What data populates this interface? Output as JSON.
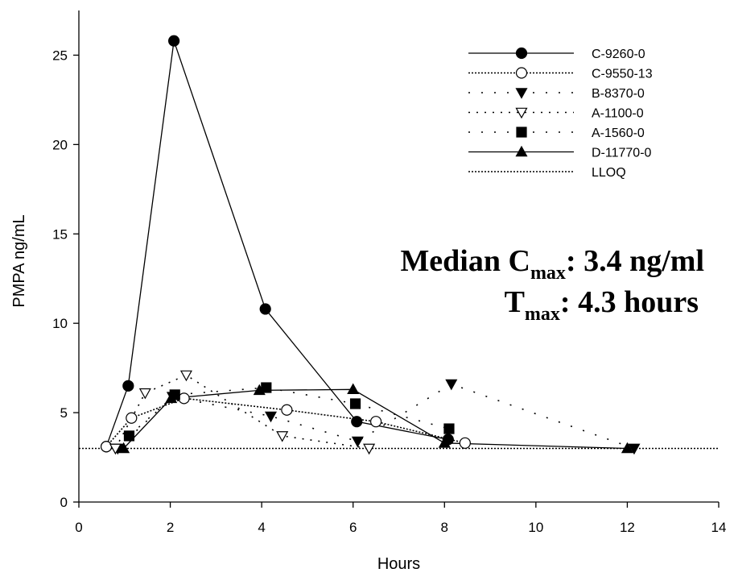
{
  "chart_data": {
    "type": "line",
    "xlabel": "Hours",
    "ylabel": "PMPA ng/mL",
    "xlim": [
      0,
      14
    ],
    "ylim": [
      0,
      27.5
    ],
    "xticks": [
      0,
      2,
      4,
      6,
      8,
      10,
      12,
      14
    ],
    "yticks": [
      0,
      5,
      10,
      15,
      20,
      25
    ],
    "grid": false,
    "legend_position": "top-right",
    "series": [
      {
        "name": "C-9260-0",
        "line": "solid",
        "marker": "circle-filled",
        "x": [
          0.6,
          1.08,
          2.08,
          4.08,
          6.08,
          8.08
        ],
        "y": [
          3.1,
          6.5,
          25.8,
          10.8,
          4.5,
          3.5
        ]
      },
      {
        "name": "C-9550-13",
        "line": "dotted",
        "marker": "circle-open",
        "x": [
          0.6,
          1.15,
          2.3,
          4.55,
          6.5,
          8.45
        ],
        "y": [
          3.1,
          4.7,
          5.8,
          5.15,
          4.5,
          3.3
        ]
      },
      {
        "name": "B-8370-0",
        "line": "sparse-dot",
        "marker": "triangle-down-filled",
        "x": [
          0.85,
          2.05,
          4.2,
          6.1,
          8.15,
          12.15
        ],
        "y": [
          3.0,
          5.9,
          4.8,
          3.4,
          6.6,
          3.0
        ]
      },
      {
        "name": "A-1100-0",
        "line": "dot-gap",
        "marker": "triangle-down-open",
        "x": [
          0.8,
          1.45,
          2.35,
          4.45,
          6.35
        ],
        "y": [
          3.0,
          6.1,
          7.1,
          3.7,
          3.0
        ]
      },
      {
        "name": "A-1560-0",
        "line": "sparse-dot",
        "marker": "square-filled",
        "x": [
          1.1,
          2.1,
          4.1,
          6.05,
          8.1
        ],
        "y": [
          3.7,
          6.0,
          6.4,
          5.5,
          4.1
        ]
      },
      {
        "name": "D-11770-0",
        "line": "solid",
        "marker": "triangle-up-filled",
        "x": [
          0.98,
          2.02,
          3.95,
          6.0,
          8.0,
          12.0
        ],
        "y": [
          3.0,
          5.8,
          6.25,
          6.3,
          3.3,
          3.0
        ]
      },
      {
        "name": "LLOQ",
        "line": "dotted",
        "marker": "none",
        "x": [
          0,
          14
        ],
        "y": [
          3.0,
          3.0
        ]
      }
    ],
    "annotations": {
      "line1_prefix": "Median C",
      "line1_sub": "max",
      "line1_suffix": ":  3.4 ng/ml",
      "line2_prefix": "T",
      "line2_sub": "max",
      "line2_suffix": ":  4.3 hours"
    }
  }
}
